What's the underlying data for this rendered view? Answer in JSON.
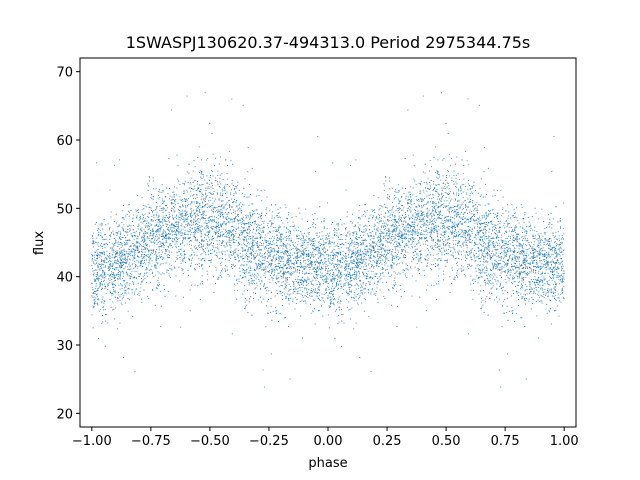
{
  "chart_data": {
    "type": "scatter",
    "title": "1SWASPJ130620.37-494313.0 Period 2975344.75s",
    "xlabel": "phase",
    "ylabel": "flux",
    "xlim": [
      -1.05,
      1.05
    ],
    "ylim": [
      18,
      72
    ],
    "x_ticks": [
      -1.0,
      -0.75,
      -0.5,
      -0.25,
      0.0,
      0.25,
      0.5,
      0.75,
      1.0
    ],
    "x_tick_labels": [
      "−1.00",
      "−0.75",
      "−0.50",
      "−0.25",
      "0.00",
      "0.25",
      "0.50",
      "0.75",
      "1.00"
    ],
    "y_ticks": [
      20,
      30,
      40,
      50,
      60,
      70
    ],
    "y_tick_labels": [
      "20",
      "30",
      "40",
      "50",
      "60",
      "70"
    ],
    "grid": false,
    "marker_color": "#1f77b4",
    "series": [
      {
        "profile": {
          "phase": [
            0.0,
            0.05,
            0.1,
            0.15,
            0.2,
            0.25,
            0.3,
            0.35,
            0.4,
            0.45,
            0.5,
            0.55,
            0.6,
            0.65,
            0.7,
            0.75,
            0.8,
            0.85,
            0.9,
            0.95,
            1.0
          ],
          "flux": [
            40.5,
            41.5,
            42.0,
            43.0,
            44.0,
            45.0,
            46.5,
            47.0,
            47.5,
            48.0,
            48.0,
            47.5,
            47.0,
            45.0,
            44.0,
            43.0,
            42.5,
            42.0,
            42.0,
            42.0,
            42.0
          ],
          "scatter": [
            4.0,
            3.5,
            3.5,
            3.5,
            3.5,
            4.0,
            4.0,
            3.5,
            4.0,
            4.5,
            4.5,
            4.5,
            4.0,
            4.5,
            4.0,
            4.0,
            3.5,
            3.5,
            3.5,
            3.5,
            3.5
          ]
        },
        "points_per_cycle": 4500,
        "outlier_fraction": 0.01,
        "x_range": [
          -1.0,
          1.0
        ]
      }
    ]
  }
}
